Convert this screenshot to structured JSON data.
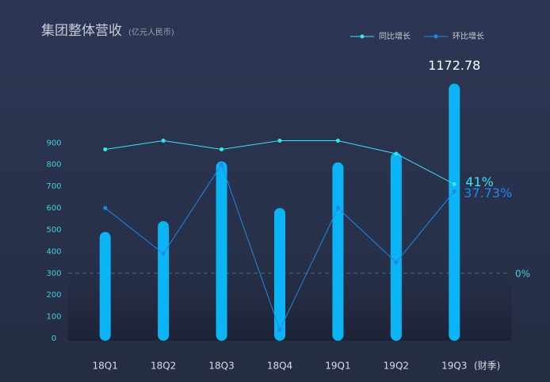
{
  "chart_data": {
    "type": "bar",
    "title": "集团整体营收",
    "subtitle": "(亿元人民币)",
    "xlabel": "(财季)",
    "categories": [
      "18Q1",
      "18Q2",
      "18Q3",
      "18Q4",
      "19Q1",
      "19Q2",
      "19Q3"
    ],
    "values": [
      490,
      540,
      815,
      600,
      810,
      855,
      1172.78
    ],
    "value_labels": [
      null,
      null,
      null,
      null,
      null,
      null,
      "1172.78"
    ],
    "color": "#0ab4f5",
    "ylim": [
      0,
      1200
    ],
    "yticks": [
      0,
      100,
      200,
      300,
      400,
      500,
      600,
      700,
      800,
      900
    ],
    "y2lim": [
      -30,
      90
    ],
    "y2ticks": [
      {
        "value": 0,
        "label": "0%"
      }
    ],
    "series": [
      {
        "name": "同比增长",
        "color": "#38e3f5",
        "axis": "y2",
        "values": [
          57,
          61,
          57,
          61,
          61,
          55,
          41
        ],
        "value_labels": [
          null,
          null,
          null,
          null,
          null,
          null,
          "41%"
        ]
      },
      {
        "name": "环比增长",
        "color": "#1e88e5",
        "axis": "y2",
        "values": [
          30,
          9,
          50,
          -26,
          30,
          5,
          37.73
        ],
        "value_labels": [
          null,
          null,
          null,
          null,
          null,
          null,
          "37.73%"
        ]
      }
    ]
  }
}
